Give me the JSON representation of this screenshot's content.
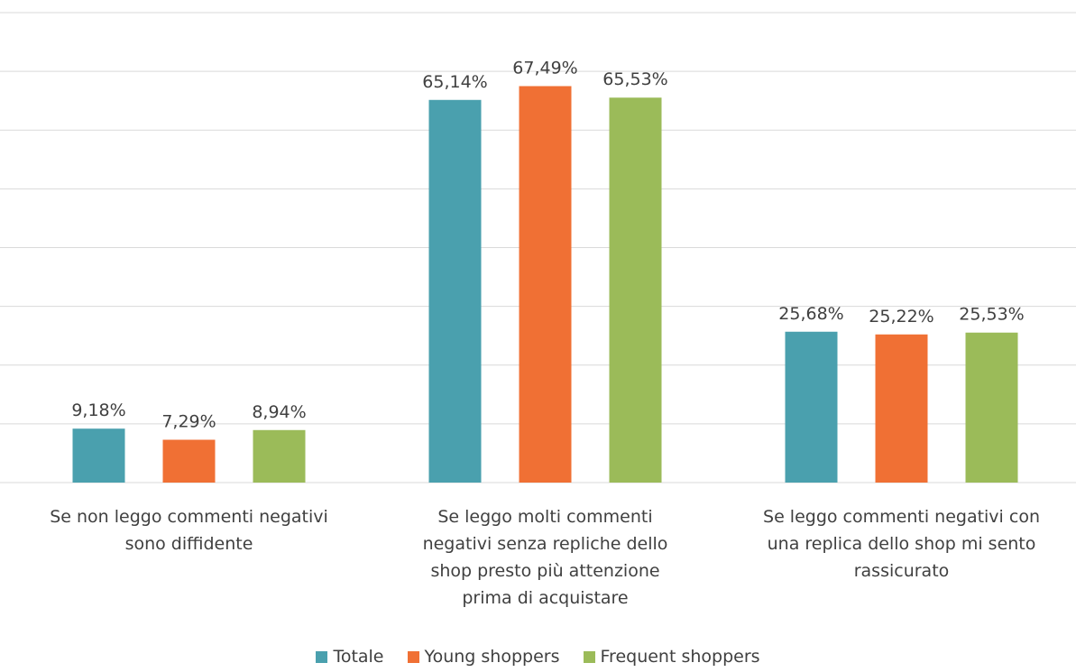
{
  "chart_data": {
    "type": "bar",
    "categories": [
      "Se non leggo commenti negativi\nsono diffidente",
      "Se leggo molti commenti\nnegativi senza repliche dello\nshop presto più attenzione\nprima di acquistare",
      "Se leggo commenti negativi con\nuna replica dello shop mi sento\nrassicurato"
    ],
    "series": [
      {
        "name": "Totale",
        "color": "#4aa0ae",
        "values": [
          9.18,
          65.14,
          25.68
        ],
        "value_labels": [
          "9,18%",
          "65,14%",
          "25,68%"
        ]
      },
      {
        "name": "Young shoppers",
        "color": "#f07034",
        "values": [
          7.29,
          67.49,
          25.22
        ],
        "value_labels": [
          "7,29%",
          "67,49%",
          "25,22%"
        ]
      },
      {
        "name": "Frequent shoppers",
        "color": "#9bbb59",
        "values": [
          8.94,
          65.53,
          25.53
        ],
        "value_labels": [
          "8,94%",
          "65,53%",
          "25,53%"
        ]
      }
    ],
    "ylim": [
      0,
      80
    ],
    "yticks": [
      0,
      10,
      20,
      30,
      40,
      50,
      60,
      70,
      80
    ],
    "grid": true,
    "legend": "bottom"
  }
}
